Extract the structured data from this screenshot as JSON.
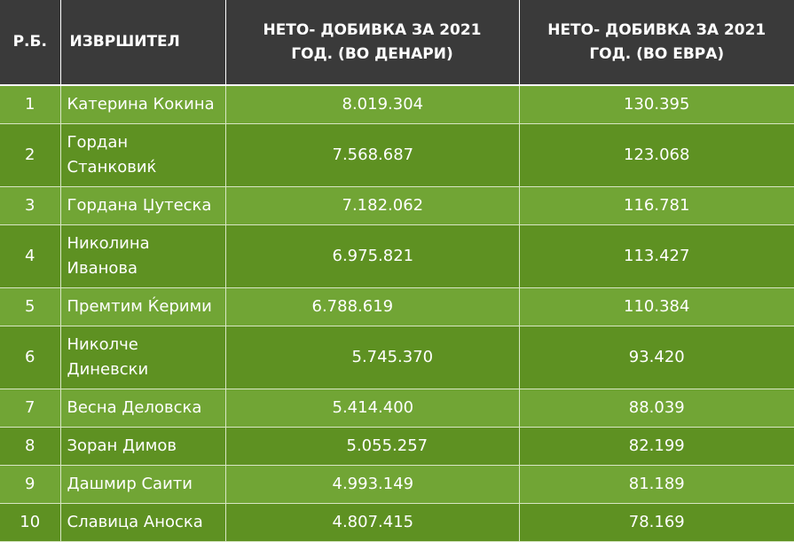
{
  "table": {
    "headers": {
      "num": "Р.Б.",
      "name": "ИЗВРШИТЕЛ",
      "denari_line1": "НЕТО- ДОБИВКА ЗА 2021",
      "denari_line2": "ГОД. (ВО ДЕНАРИ)",
      "euro_line1": "НЕТО- ДОБИВКА ЗА 2021",
      "euro_line2": "ГОД. (ВО ЕВРА)"
    },
    "rows": [
      {
        "num": "1",
        "name": "Катерина Кокина",
        "denari": "8.019.304",
        "euro": "130.395"
      },
      {
        "num": "2",
        "name": "Гордан Станковиќ",
        "denari": "7.568.687",
        "euro": "123.068"
      },
      {
        "num": "3",
        "name": "Гордана Џутеска",
        "denari": "7.182.062",
        "euro": "116.781"
      },
      {
        "num": "4",
        "name": "Николина Иванова",
        "denari": "6.975.821",
        "euro": "113.427"
      },
      {
        "num": "5",
        "name": "Премтим Ќерими",
        "denari": "6.788.619",
        "euro": "110.384"
      },
      {
        "num": "6",
        "name": "Николче Диневски",
        "denari": "5.745.370",
        "euro": "93.420"
      },
      {
        "num": "7",
        "name": "Весна Деловска",
        "denari": "5.414.400",
        "euro": "88.039"
      },
      {
        "num": "8",
        "name": "Зоран Димов",
        "denari": "5.055.257",
        "euro": "82.199"
      },
      {
        "num": "9",
        "name": "Дашмир Саити",
        "denari": "4.993.149",
        "euro": "81.189"
      },
      {
        "num": "10",
        "name": "Славица Аноска",
        "denari": "4.807.415",
        "euro": "78.169"
      }
    ]
  }
}
